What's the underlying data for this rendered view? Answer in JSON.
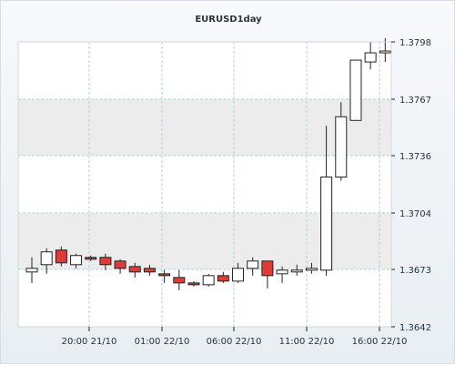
{
  "chart_data": {
    "type": "candlestick",
    "title": "EURUSD1day",
    "x_tick_labels": [
      "20:00 21/10",
      "01:00 22/10",
      "06:00 22/10",
      "11:00 22/10",
      "16:00 22/10"
    ],
    "y_tick_labels": [
      "1.3798",
      "1.3767",
      "1.3736",
      "1.3704",
      "1.3673",
      "1.3642"
    ],
    "ylim": [
      1.3642,
      1.3798
    ],
    "grid": true,
    "colors": {
      "bullish_fill": "#ffffff",
      "bearish_fill": "#e03b3b",
      "candle_outline": "#222222",
      "wick": "#222222",
      "grid": "#a9d7d7",
      "plot_band": "#ececec",
      "axis": "#222222"
    },
    "candles": [
      {
        "open": 1.3672,
        "high": 1.368,
        "low": 1.3666,
        "close": 1.3674
      },
      {
        "open": 1.3676,
        "high": 1.3685,
        "low": 1.3671,
        "close": 1.3683
      },
      {
        "open": 1.3684,
        "high": 1.3686,
        "low": 1.3675,
        "close": 1.3677
      },
      {
        "open": 1.3676,
        "high": 1.3682,
        "low": 1.3674,
        "close": 1.3681
      },
      {
        "open": 1.368,
        "high": 1.3681,
        "low": 1.3678,
        "close": 1.3679
      },
      {
        "open": 1.368,
        "high": 1.3682,
        "low": 1.3673,
        "close": 1.3676
      },
      {
        "open": 1.3678,
        "high": 1.3679,
        "low": 1.3671,
        "close": 1.3674
      },
      {
        "open": 1.3675,
        "high": 1.3677,
        "low": 1.3669,
        "close": 1.3672
      },
      {
        "open": 1.3674,
        "high": 1.3676,
        "low": 1.367,
        "close": 1.3672
      },
      {
        "open": 1.3671,
        "high": 1.3673,
        "low": 1.3666,
        "close": 1.367
      },
      {
        "open": 1.3669,
        "high": 1.3673,
        "low": 1.3662,
        "close": 1.3666
      },
      {
        "open": 1.3666,
        "high": 1.3667,
        "low": 1.3664,
        "close": 1.3665
      },
      {
        "open": 1.3665,
        "high": 1.3671,
        "low": 1.3664,
        "close": 1.367
      },
      {
        "open": 1.367,
        "high": 1.3672,
        "low": 1.3666,
        "close": 1.3667
      },
      {
        "open": 1.3667,
        "high": 1.3677,
        "low": 1.3666,
        "close": 1.3674
      },
      {
        "open": 1.3674,
        "high": 1.368,
        "low": 1.367,
        "close": 1.3678
      },
      {
        "open": 1.3678,
        "high": 1.3678,
        "low": 1.3663,
        "close": 1.367
      },
      {
        "open": 1.3671,
        "high": 1.3675,
        "low": 1.3666,
        "close": 1.3673
      },
      {
        "open": 1.3672,
        "high": 1.3676,
        "low": 1.367,
        "close": 1.3673
      },
      {
        "open": 1.3673,
        "high": 1.3677,
        "low": 1.3671,
        "close": 1.3674
      },
      {
        "open": 1.3673,
        "high": 1.3752,
        "low": 1.367,
        "close": 1.3724
      },
      {
        "open": 1.3724,
        "high": 1.3765,
        "low": 1.3722,
        "close": 1.3757
      },
      {
        "open": 1.3755,
        "high": 1.3788,
        "low": 1.3755,
        "close": 1.3788
      },
      {
        "open": 1.3787,
        "high": 1.3798,
        "low": 1.3783,
        "close": 1.3792
      },
      {
        "open": 1.3792,
        "high": 1.38,
        "low": 1.3787,
        "close": 1.3793
      }
    ]
  }
}
